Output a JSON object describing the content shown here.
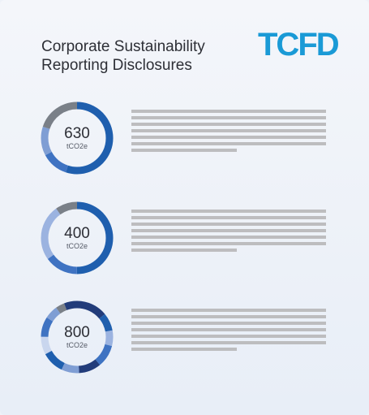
{
  "header": {
    "title": "Corporate Sustainability Reporting Disclosures",
    "logo_text": "TCFD"
  },
  "colors": {
    "logo": "#1a9ad6",
    "ring_primary": "#1f5fae",
    "ring_light": "#7f9ed4",
    "ring_gray": "#7a8088",
    "ring_navy": "#223c7a",
    "text_line": "#bdbdbf"
  },
  "items": [
    {
      "value": "630",
      "unit": "tCO2e",
      "segments": [
        {
          "fraction": 0.55,
          "color": "#1f5fae"
        },
        {
          "fraction": 0.12,
          "color": "#3f73c2"
        },
        {
          "fraction": 0.13,
          "color": "#7f9ed4"
        },
        {
          "fraction": 0.2,
          "color": "#7a8088"
        }
      ],
      "text_lines": [
        1,
        1,
        1,
        1,
        1,
        1,
        0.54
      ]
    },
    {
      "value": "400",
      "unit": "tCO2e",
      "segments": [
        {
          "fraction": 0.5,
          "color": "#1f5fae"
        },
        {
          "fraction": 0.15,
          "color": "#3f73c2"
        },
        {
          "fraction": 0.25,
          "color": "#9bb3e0"
        },
        {
          "fraction": 0.1,
          "color": "#7a8088"
        }
      ],
      "text_lines": [
        1,
        1,
        1,
        1,
        1,
        1,
        0.54
      ]
    },
    {
      "value": "800",
      "unit": "tCO2e",
      "segments": [
        {
          "fraction": 0.14,
          "color": "#223c7a"
        },
        {
          "fraction": 0.08,
          "color": "#1f5fae"
        },
        {
          "fraction": 0.07,
          "color": "#9bb3e0"
        },
        {
          "fraction": 0.1,
          "color": "#3f73c2"
        },
        {
          "fraction": 0.1,
          "color": "#223c7a"
        },
        {
          "fraction": 0.08,
          "color": "#7f9ed4"
        },
        {
          "fraction": 0.1,
          "color": "#1f5fae"
        },
        {
          "fraction": 0.08,
          "color": "#c9d6ee"
        },
        {
          "fraction": 0.09,
          "color": "#3f73c2"
        },
        {
          "fraction": 0.06,
          "color": "#7f9ed4"
        },
        {
          "fraction": 0.04,
          "color": "#7a8088"
        },
        {
          "fraction": 0.06,
          "color": "#223c7a"
        }
      ],
      "text_lines": [
        1,
        1,
        1,
        1,
        1,
        1,
        0.54
      ]
    }
  ]
}
